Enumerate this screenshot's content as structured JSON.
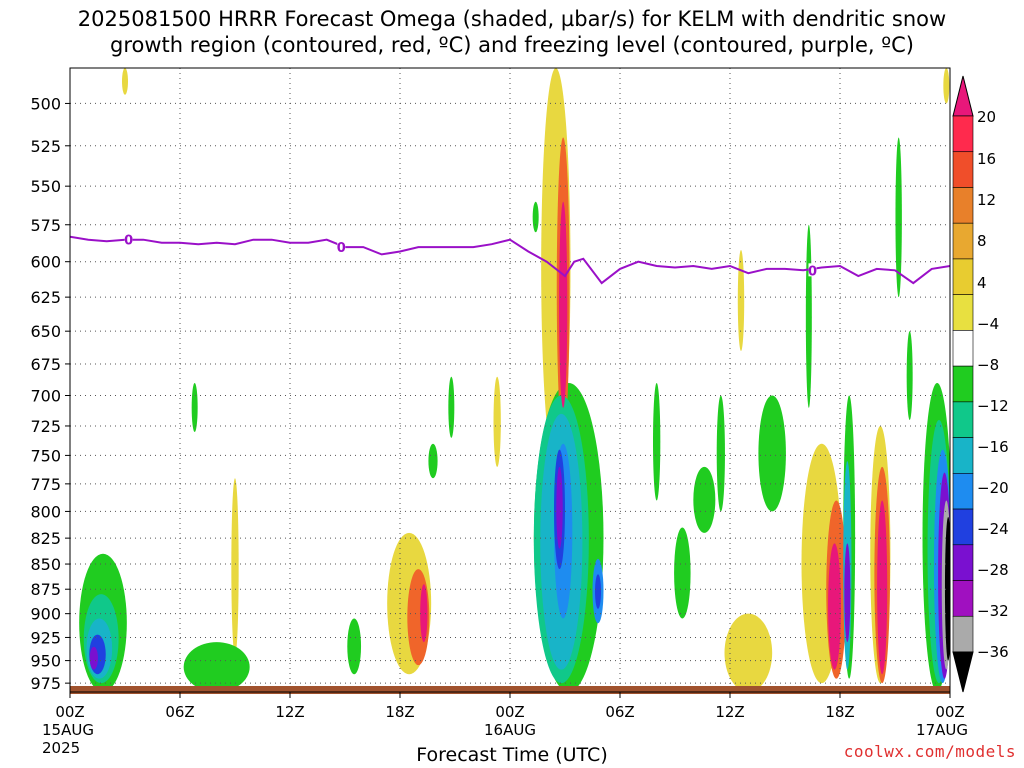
{
  "chart_data": {
    "type": "heatmap",
    "title_line1": "2025081500 HRRR Forecast Omega (shaded, µbar/s) for KELM with dendritic snow",
    "title_line2": "growth region (contoured, red, ºC) and freezing level (contoured, purple, ºC)",
    "xlabel": "Forecast Time (UTC)",
    "y_ticks": [
      500,
      525,
      550,
      575,
      600,
      625,
      650,
      675,
      700,
      725,
      750,
      775,
      800,
      825,
      850,
      875,
      900,
      925,
      950,
      975
    ],
    "y_range": [
      480,
      985
    ],
    "y_axis": "log-pressure (hPa), inverted",
    "x_range_hours": [
      0,
      48
    ],
    "x_ticks": [
      {
        "hour": 0,
        "label": "00Z",
        "sub": "15AUG",
        "sub2": "2025"
      },
      {
        "hour": 6,
        "label": "06Z"
      },
      {
        "hour": 12,
        "label": "12Z"
      },
      {
        "hour": 18,
        "label": "18Z"
      },
      {
        "hour": 24,
        "label": "00Z",
        "sub": "16AUG"
      },
      {
        "hour": 30,
        "label": "06Z"
      },
      {
        "hour": 36,
        "label": "12Z"
      },
      {
        "hour": 42,
        "label": "18Z"
      },
      {
        "hour": 48,
        "label": "00Z",
        "sub": "17AUG"
      }
    ],
    "colorbar": {
      "labels": [
        "20",
        "16",
        "12",
        "8",
        "4",
        "−4",
        "−8",
        "−12",
        "−16",
        "−20",
        "−24",
        "−28",
        "−32",
        "−36"
      ],
      "colors": [
        "#e8177a",
        "#ff2a4d",
        "#f04e2a",
        "#e8802a",
        "#e8a830",
        "#e8cc30",
        "#e8e040",
        "#ffffff",
        "#20cc20",
        "#10c88a",
        "#18b4c8",
        "#1e8cf0",
        "#2040e0",
        "#7a10d0",
        "#a010c0",
        "#aaaaaa",
        "#000000"
      ]
    },
    "freezing_level": {
      "label": "0",
      "points": [
        [
          0,
          583
        ],
        [
          1,
          585
        ],
        [
          2,
          586
        ],
        [
          3,
          585
        ],
        [
          4,
          585
        ],
        [
          5,
          587
        ],
        [
          6,
          587
        ],
        [
          7,
          588
        ],
        [
          8,
          587
        ],
        [
          9,
          588
        ],
        [
          10,
          585
        ],
        [
          11,
          585
        ],
        [
          12,
          587
        ],
        [
          13,
          587
        ],
        [
          14,
          585
        ],
        [
          15,
          590
        ],
        [
          16,
          590
        ],
        [
          17,
          595
        ],
        [
          18,
          593
        ],
        [
          19,
          590
        ],
        [
          20,
          590
        ],
        [
          21,
          590
        ],
        [
          22,
          590
        ],
        [
          23,
          588
        ],
        [
          24,
          585
        ],
        [
          25,
          593
        ],
        [
          26,
          600
        ],
        [
          27,
          610
        ],
        [
          27.5,
          600
        ],
        [
          28,
          598
        ],
        [
          29,
          615
        ],
        [
          30,
          605
        ],
        [
          31,
          600
        ],
        [
          32,
          603
        ],
        [
          33,
          604
        ],
        [
          34,
          603
        ],
        [
          35,
          605
        ],
        [
          36,
          603
        ],
        [
          37,
          608
        ],
        [
          38,
          605
        ],
        [
          39,
          605
        ],
        [
          40,
          606
        ],
        [
          41,
          604
        ],
        [
          42,
          603
        ],
        [
          43,
          610
        ],
        [
          44,
          605
        ],
        [
          45,
          606
        ],
        [
          46,
          615
        ],
        [
          47,
          605
        ],
        [
          48,
          603
        ]
      ],
      "color": "#9a10c8"
    },
    "omega_regions": [
      {
        "level": 6,
        "hour": 26.5,
        "p_top": 480,
        "p_bot": 760,
        "w": 1.6
      },
      {
        "level": 10,
        "hour": 26.9,
        "p_top": 520,
        "p_bot": 735,
        "w": 0.7
      },
      {
        "level": 15,
        "hour": 26.9,
        "p_top": 560,
        "p_bot": 710,
        "w": 0.45
      },
      {
        "level": 6,
        "hour": 36.6,
        "p_top": 592,
        "p_bot": 665,
        "w": 0.35
      },
      {
        "level": 6,
        "hour": 47.8,
        "p_top": 480,
        "p_bot": 500,
        "w": 0.2
      },
      {
        "level": 6,
        "hour": 3.0,
        "p_top": 480,
        "p_bot": 495,
        "w": 0.15
      },
      {
        "level": 6,
        "hour": 9.0,
        "p_top": 770,
        "p_bot": 945,
        "w": 0.4
      },
      {
        "level": 6,
        "hour": 18.5,
        "p_top": 820,
        "p_bot": 965,
        "w": 2.4
      },
      {
        "level": 10,
        "hour": 19.0,
        "p_top": 855,
        "p_bot": 955,
        "w": 1.2
      },
      {
        "level": 15,
        "hour": 19.3,
        "p_top": 870,
        "p_bot": 930,
        "w": 0.4
      },
      {
        "level": 6,
        "hour": 23.3,
        "p_top": 685,
        "p_bot": 760,
        "w": 0.4
      },
      {
        "level": 6,
        "hour": 41.0,
        "p_top": 740,
        "p_bot": 975,
        "w": 2.2
      },
      {
        "level": 10,
        "hour": 41.8,
        "p_top": 790,
        "p_bot": 970,
        "w": 1.1
      },
      {
        "level": 15,
        "hour": 41.7,
        "p_top": 830,
        "p_bot": 960,
        "w": 0.7
      },
      {
        "level": 6,
        "hour": 44.2,
        "p_top": 725,
        "p_bot": 975,
        "w": 1.1
      },
      {
        "level": 10,
        "hour": 44.3,
        "p_top": 760,
        "p_bot": 975,
        "w": 0.85
      },
      {
        "level": 15,
        "hour": 44.3,
        "p_top": 790,
        "p_bot": 965,
        "w": 0.55
      },
      {
        "level": 6,
        "hour": 37.0,
        "p_top": 900,
        "p_bot": 985,
        "w": 2.6
      },
      {
        "level": -6,
        "hour": 1.8,
        "p_top": 840,
        "p_bot": 985,
        "w": 2.6
      },
      {
        "level": -10,
        "hour": 1.7,
        "p_top": 880,
        "p_bot": 975,
        "w": 1.9
      },
      {
        "level": -14,
        "hour": 1.6,
        "p_top": 905,
        "p_bot": 970,
        "w": 1.4
      },
      {
        "level": -22,
        "hour": 1.5,
        "p_top": 922,
        "p_bot": 965,
        "w": 0.9
      },
      {
        "level": -26,
        "hour": 1.3,
        "p_top": 935,
        "p_bot": 960,
        "w": 0.45
      },
      {
        "level": -6,
        "hour": 8.0,
        "p_top": 930,
        "p_bot": 985,
        "w": 3.6
      },
      {
        "level": -6,
        "hour": 6.8,
        "p_top": 690,
        "p_bot": 730,
        "w": 0.2
      },
      {
        "level": -6,
        "hour": 15.5,
        "p_top": 905,
        "p_bot": 965,
        "w": 0.75
      },
      {
        "level": -6,
        "hour": 19.8,
        "p_top": 740,
        "p_bot": 770,
        "w": 0.5
      },
      {
        "level": -6,
        "hour": 20.8,
        "p_top": 685,
        "p_bot": 735,
        "w": 0.25
      },
      {
        "level": -6,
        "hour": 27.2,
        "p_top": 690,
        "p_bot": 985,
        "w": 3.8
      },
      {
        "level": -10,
        "hour": 26.8,
        "p_top": 700,
        "p_bot": 975,
        "w": 3.0
      },
      {
        "level": -14,
        "hour": 26.8,
        "p_top": 715,
        "p_bot": 960,
        "w": 2.3
      },
      {
        "level": -18,
        "hour": 26.9,
        "p_top": 740,
        "p_bot": 905,
        "w": 1.0
      },
      {
        "level": -22,
        "hour": 26.7,
        "p_top": 745,
        "p_bot": 855,
        "w": 0.6
      },
      {
        "level": -26,
        "hour": 26.7,
        "p_top": 760,
        "p_bot": 835,
        "w": 0.35
      },
      {
        "level": -18,
        "hour": 28.8,
        "p_top": 845,
        "p_bot": 910,
        "w": 0.6
      },
      {
        "level": -22,
        "hour": 28.8,
        "p_top": 860,
        "p_bot": 895,
        "w": 0.25
      },
      {
        "level": -6,
        "hour": 25.4,
        "p_top": 560,
        "p_bot": 580,
        "w": 0.15
      },
      {
        "level": -6,
        "hour": 35.5,
        "p_top": 700,
        "p_bot": 800,
        "w": 0.45
      },
      {
        "level": -6,
        "hour": 32.0,
        "p_top": 690,
        "p_bot": 790,
        "w": 0.4
      },
      {
        "level": -6,
        "hour": 34.6,
        "p_top": 760,
        "p_bot": 820,
        "w": 1.2
      },
      {
        "level": -6,
        "hour": 33.4,
        "p_top": 815,
        "p_bot": 905,
        "w": 0.9
      },
      {
        "level": -6,
        "hour": 38.3,
        "p_top": 700,
        "p_bot": 800,
        "w": 1.5
      },
      {
        "level": -6,
        "hour": 40.3,
        "p_top": 575,
        "p_bot": 710,
        "w": 0.3
      },
      {
        "level": -6,
        "hour": 42.5,
        "p_top": 700,
        "p_bot": 970,
        "w": 0.65
      },
      {
        "level": -14,
        "hour": 42.4,
        "p_top": 755,
        "p_bot": 960,
        "w": 0.45
      },
      {
        "level": -26,
        "hour": 42.4,
        "p_top": 830,
        "p_bot": 930,
        "w": 0.2
      },
      {
        "level": -6,
        "hour": 45.2,
        "p_top": 520,
        "p_bot": 625,
        "w": 0.35
      },
      {
        "level": -6,
        "hour": 45.8,
        "p_top": 650,
        "p_bot": 720,
        "w": 0.3
      },
      {
        "level": -6,
        "hour": 47.3,
        "p_top": 690,
        "p_bot": 985,
        "w": 1.6
      },
      {
        "level": -10,
        "hour": 47.4,
        "p_top": 720,
        "p_bot": 975,
        "w": 1.25
      },
      {
        "level": -18,
        "hour": 47.6,
        "p_top": 745,
        "p_bot": 975,
        "w": 0.95
      },
      {
        "level": -26,
        "hour": 47.7,
        "p_top": 765,
        "p_bot": 970,
        "w": 0.7
      },
      {
        "level": -32,
        "hour": 47.8,
        "p_top": 790,
        "p_bot": 960,
        "w": 0.5
      },
      {
        "level": -36,
        "hour": 47.9,
        "p_top": 805,
        "p_bot": 950,
        "w": 0.35
      }
    ]
  },
  "credit": "coolwx.com/models"
}
